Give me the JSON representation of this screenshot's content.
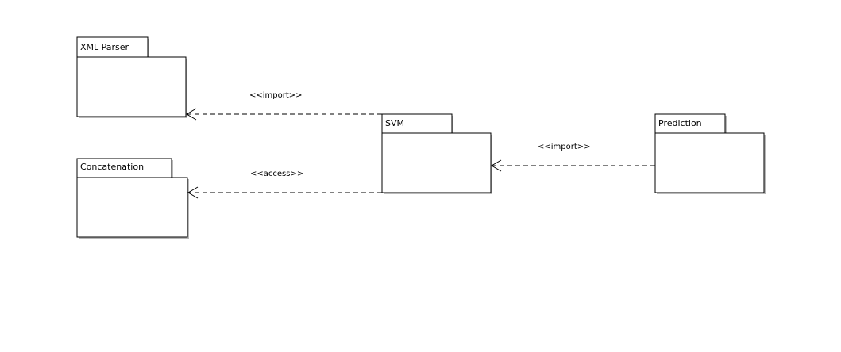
{
  "diagram": {
    "type": "UML package diagram",
    "packages": {
      "xml_parser": {
        "name": "XML Parser"
      },
      "concatenation": {
        "name": "Concatenation"
      },
      "svm": {
        "name": "SVM"
      },
      "prediction": {
        "name": "Prediction"
      }
    },
    "dependencies": {
      "svm_to_xml_parser": {
        "from": "SVM",
        "to": "XML Parser",
        "stereotype": "<<import>>"
      },
      "svm_to_concatenation": {
        "from": "SVM",
        "to": "Concatenation",
        "stereotype": "<<access>>"
      },
      "prediction_to_svm": {
        "from": "Prediction",
        "to": "SVM",
        "stereotype": "<<import>>"
      }
    }
  }
}
